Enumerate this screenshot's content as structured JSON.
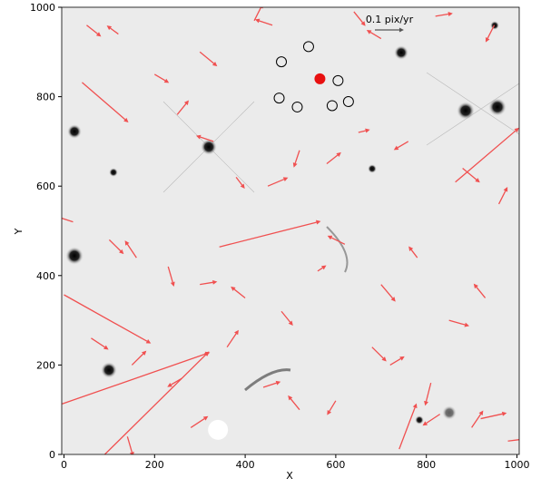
{
  "chart_data": {
    "type": "quiver",
    "xlabel": "X",
    "ylabel": "Y",
    "xlim": [
      -5,
      1005
    ],
    "ylim": [
      0,
      1000
    ],
    "xticks": [
      0,
      200,
      400,
      600,
      800,
      1000
    ],
    "yticks": [
      0,
      200,
      400,
      600,
      800,
      1000
    ],
    "color": "#f05050",
    "x": [
      -4,
      90,
      343,
      864,
      0,
      40,
      740,
      50,
      120,
      300,
      420,
      460,
      640,
      700,
      820,
      950,
      200,
      250,
      330,
      380,
      450,
      520,
      580,
      650,
      760,
      880,
      960,
      20,
      100,
      160,
      230,
      300,
      400,
      480,
      560,
      620,
      700,
      780,
      850,
      930,
      60,
      150,
      260,
      360,
      440,
      600,
      720,
      830,
      900,
      980,
      140,
      280,
      520,
      680,
      810,
      920
    ],
    "y": [
      113,
      0,
      464,
      609,
      357,
      832,
      12,
      960,
      940,
      900,
      970,
      960,
      990,
      930,
      980,
      960,
      850,
      760,
      700,
      620,
      600,
      680,
      650,
      720,
      700,
      640,
      560,
      520,
      480,
      440,
      420,
      380,
      350,
      320,
      410,
      470,
      380,
      440,
      300,
      350,
      260,
      200,
      170,
      240,
      150,
      120,
      200,
      90,
      60,
      30,
      40,
      60,
      100,
      240,
      160,
      80
    ],
    "u": [
      0.51,
      0.36,
      0.35,
      0.22,
      0.3,
      0.16,
      0.06,
      0.05,
      -0.04,
      0.06,
      0.03,
      -0.06,
      0.04,
      -0.05,
      0.06,
      -0.03,
      0.05,
      0.04,
      -0.06,
      0.03,
      0.07,
      -0.02,
      0.05,
      0.04,
      -0.05,
      0.06,
      0.03,
      -0.06,
      0.05,
      -0.04,
      0.02,
      0.06,
      -0.05,
      0.04,
      0.03,
      -0.06,
      0.05,
      -0.03,
      0.07,
      -0.04,
      0.06,
      0.05,
      -0.05,
      0.04,
      0.06,
      -0.03,
      0.05,
      -0.06,
      0.04,
      0.08,
      0.02,
      0.06,
      -0.04,
      0.05,
      -0.02,
      0.09
    ],
    "v": [
      0.18,
      0.36,
      0.09,
      0.19,
      -0.17,
      -0.14,
      0.16,
      -0.04,
      0.03,
      -0.05,
      0.06,
      0.02,
      -0.05,
      0.03,
      0.01,
      -0.06,
      -0.03,
      0.05,
      0.02,
      -0.04,
      0.03,
      -0.06,
      0.04,
      0.01,
      -0.03,
      -0.05,
      0.06,
      0.02,
      -0.05,
      0.06,
      -0.07,
      0.01,
      0.04,
      -0.05,
      0.02,
      0.03,
      -0.06,
      0.04,
      -0.02,
      0.05,
      -0.04,
      0.05,
      -0.03,
      0.06,
      0.02,
      -0.05,
      0.03,
      -0.04,
      0.06,
      0.01,
      -0.07,
      0.04,
      0.05,
      -0.05,
      -0.08,
      0.02
    ],
    "markers": {
      "x": [
        480,
        540,
        605,
        628,
        592,
        515,
        475
      ],
      "y": [
        878,
        912,
        836,
        789,
        780,
        777,
        797
      ]
    },
    "highlight": {
      "x": 565,
      "y": 840,
      "color": "#e81010"
    },
    "masked": {
      "x": 340,
      "y": 55
    },
    "key": {
      "value": 0.1,
      "label": "0.1 pix/yr"
    }
  }
}
